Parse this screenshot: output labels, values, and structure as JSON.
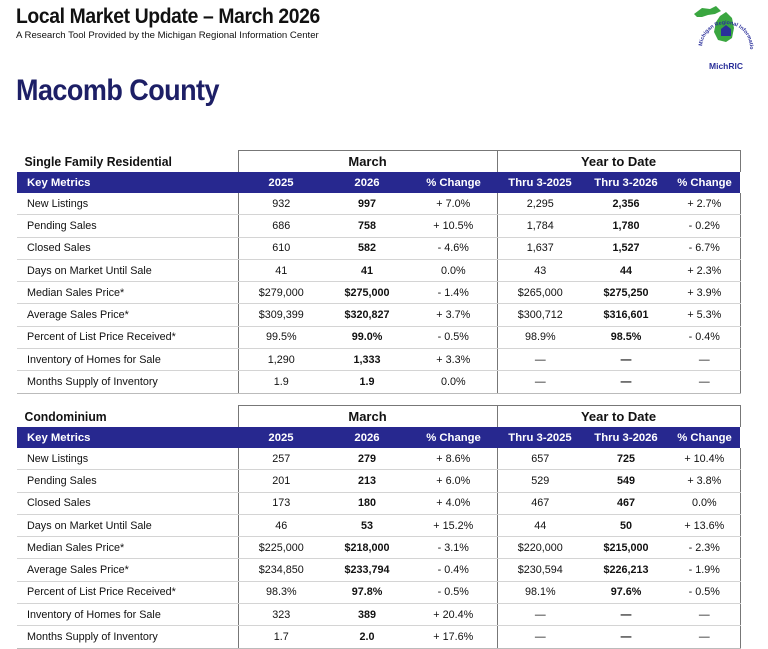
{
  "header": {
    "title": "Local Market Update – March 2026",
    "subtitle": "A Research Tool Provided by the Michigan Regional Information Center",
    "logo_text": "MichRIC",
    "logo_ring_text": "Michigan Regional Information Center"
  },
  "county": "Macomb County",
  "colors": {
    "header_bar": "#27288f",
    "county_title": "#1d1f66",
    "logo_green": "#3aa640",
    "logo_blue": "#2a2f9a"
  },
  "tables": [
    {
      "title": "Single Family Residential",
      "group1": "March",
      "group2": "Year to Date",
      "columns": [
        "Key Metrics",
        "2025",
        "2026",
        "% Change",
        "Thru 3-2025",
        "Thru 3-2026",
        "% Change"
      ],
      "rows": [
        [
          "New Listings",
          "932",
          "997",
          "+ 7.0%",
          "2,295",
          "2,356",
          "+ 2.7%"
        ],
        [
          "Pending Sales",
          "686",
          "758",
          "+ 10.5%",
          "1,784",
          "1,780",
          "- 0.2%"
        ],
        [
          "Closed Sales",
          "610",
          "582",
          "- 4.6%",
          "1,637",
          "1,527",
          "- 6.7%"
        ],
        [
          "Days on Market Until Sale",
          "41",
          "41",
          "0.0%",
          "43",
          "44",
          "+ 2.3%"
        ],
        [
          "Median Sales Price*",
          "$279,000",
          "$275,000",
          "- 1.4%",
          "$265,000",
          "$275,250",
          "+ 3.9%"
        ],
        [
          "Average Sales Price*",
          "$309,399",
          "$320,827",
          "+ 3.7%",
          "$300,712",
          "$316,601",
          "+ 5.3%"
        ],
        [
          "Percent of List Price Received*",
          "99.5%",
          "99.0%",
          "- 0.5%",
          "98.9%",
          "98.5%",
          "- 0.4%"
        ],
        [
          "Inventory of Homes for Sale",
          "1,290",
          "1,333",
          "+ 3.3%",
          "—",
          "—",
          "—"
        ],
        [
          "Months Supply of Inventory",
          "1.9",
          "1.9",
          "0.0%",
          "—",
          "—",
          "—"
        ]
      ]
    },
    {
      "title": "Condominium",
      "group1": "March",
      "group2": "Year to Date",
      "columns": [
        "Key Metrics",
        "2025",
        "2026",
        "% Change",
        "Thru 3-2025",
        "Thru 3-2026",
        "% Change"
      ],
      "rows": [
        [
          "New Listings",
          "257",
          "279",
          "+ 8.6%",
          "657",
          "725",
          "+ 10.4%"
        ],
        [
          "Pending Sales",
          "201",
          "213",
          "+ 6.0%",
          "529",
          "549",
          "+ 3.8%"
        ],
        [
          "Closed Sales",
          "173",
          "180",
          "+ 4.0%",
          "467",
          "467",
          "0.0%"
        ],
        [
          "Days on Market Until Sale",
          "46",
          "53",
          "+ 15.2%",
          "44",
          "50",
          "+ 13.6%"
        ],
        [
          "Median Sales Price*",
          "$225,000",
          "$218,000",
          "- 3.1%",
          "$220,000",
          "$215,000",
          "- 2.3%"
        ],
        [
          "Average Sales Price*",
          "$234,850",
          "$233,794",
          "- 0.4%",
          "$230,594",
          "$226,213",
          "- 1.9%"
        ],
        [
          "Percent of List Price Received*",
          "98.3%",
          "97.8%",
          "- 0.5%",
          "98.1%",
          "97.6%",
          "- 0.5%"
        ],
        [
          "Inventory of Homes for Sale",
          "323",
          "389",
          "+ 20.4%",
          "—",
          "—",
          "—"
        ],
        [
          "Months Supply of Inventory",
          "1.7",
          "2.0",
          "+ 17.6%",
          "—",
          "—",
          "—"
        ]
      ]
    }
  ]
}
